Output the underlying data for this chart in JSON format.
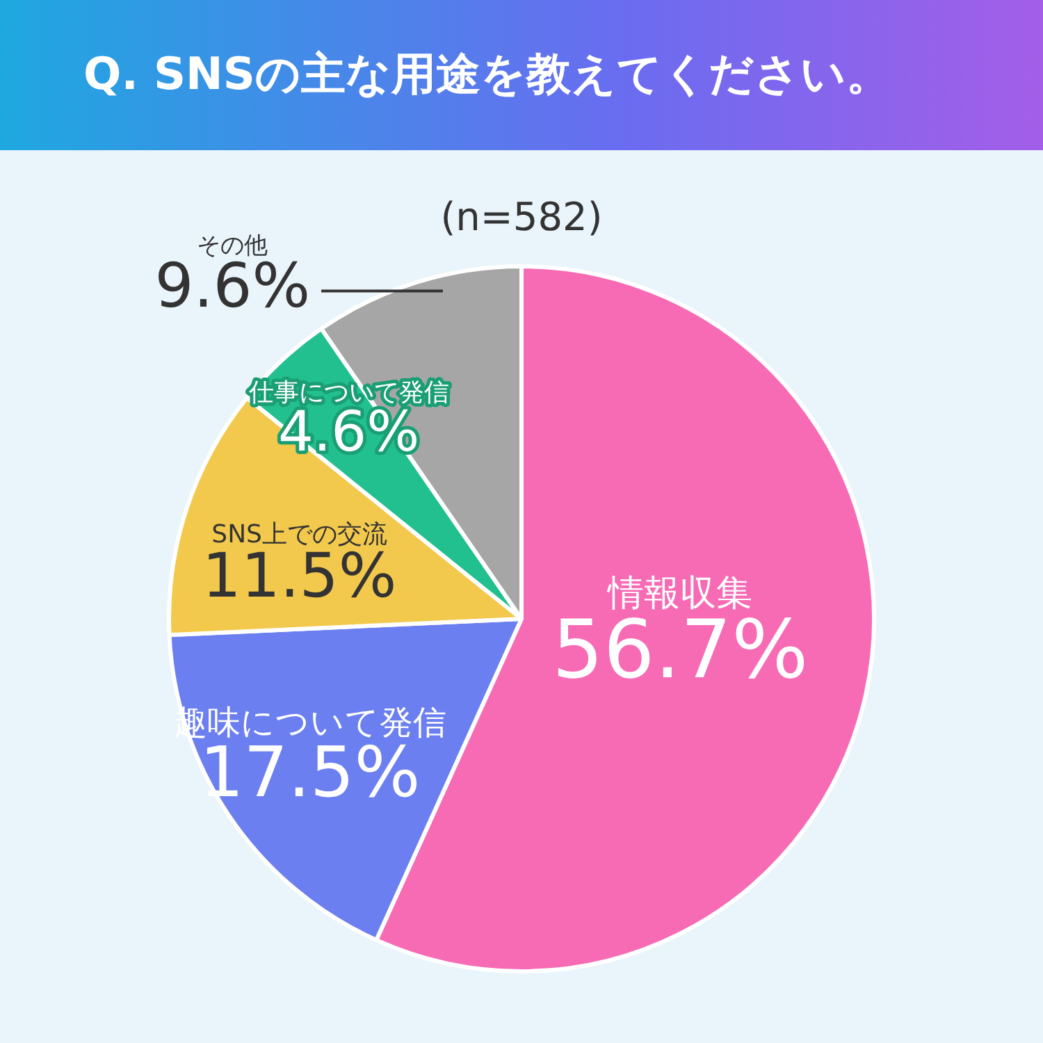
{
  "chart_data": {
    "type": "pie",
    "title": "Q. SNSの主な用途を教えてください。",
    "subtitle": "(n=582)",
    "categories": [
      "情報収集",
      "趣味について発信",
      "SNS上での交流",
      "仕事について発信",
      "その他"
    ],
    "values": [
      56.7,
      17.5,
      11.5,
      4.6,
      9.6
    ],
    "colors": [
      "#f76bb5",
      "#6b7ff0",
      "#f2c94c",
      "#22bf8f",
      "#a6a6a6"
    ],
    "value_labels": [
      "56.7%",
      "17.5%",
      "11.5%",
      "4.6%",
      "9.6%"
    ],
    "legend": false
  }
}
